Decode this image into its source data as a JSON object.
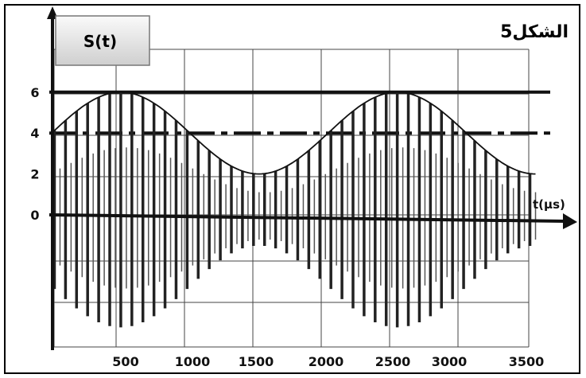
{
  "figure_label": "الشكل5",
  "chart_data": {
    "type": "line",
    "title": "",
    "ylabel": "S(t)",
    "xlabel": "t(µs)",
    "x_ticks": [
      500,
      1000,
      1500,
      2000,
      2500,
      3000,
      3500
    ],
    "y_ticks": [
      0,
      2,
      4,
      6
    ],
    "xlim": [
      0,
      3600
    ],
    "ylim": [
      -5.5,
      9.8
    ],
    "grid": true,
    "envelope": {
      "name": "envelope",
      "offset": 4,
      "amplitude": 2,
      "period": 2000,
      "peak_at": 500,
      "x": [
        0,
        500,
        1500,
        2500,
        3500
      ],
      "y": [
        4,
        6,
        2,
        6,
        2
      ]
    },
    "modulated_signal": {
      "carrier_period": 80,
      "min_level_reference": 0
    },
    "reference_lines": [
      {
        "y": 6,
        "style": "solid"
      },
      {
        "y": 4,
        "style": "dash-dot"
      }
    ]
  }
}
